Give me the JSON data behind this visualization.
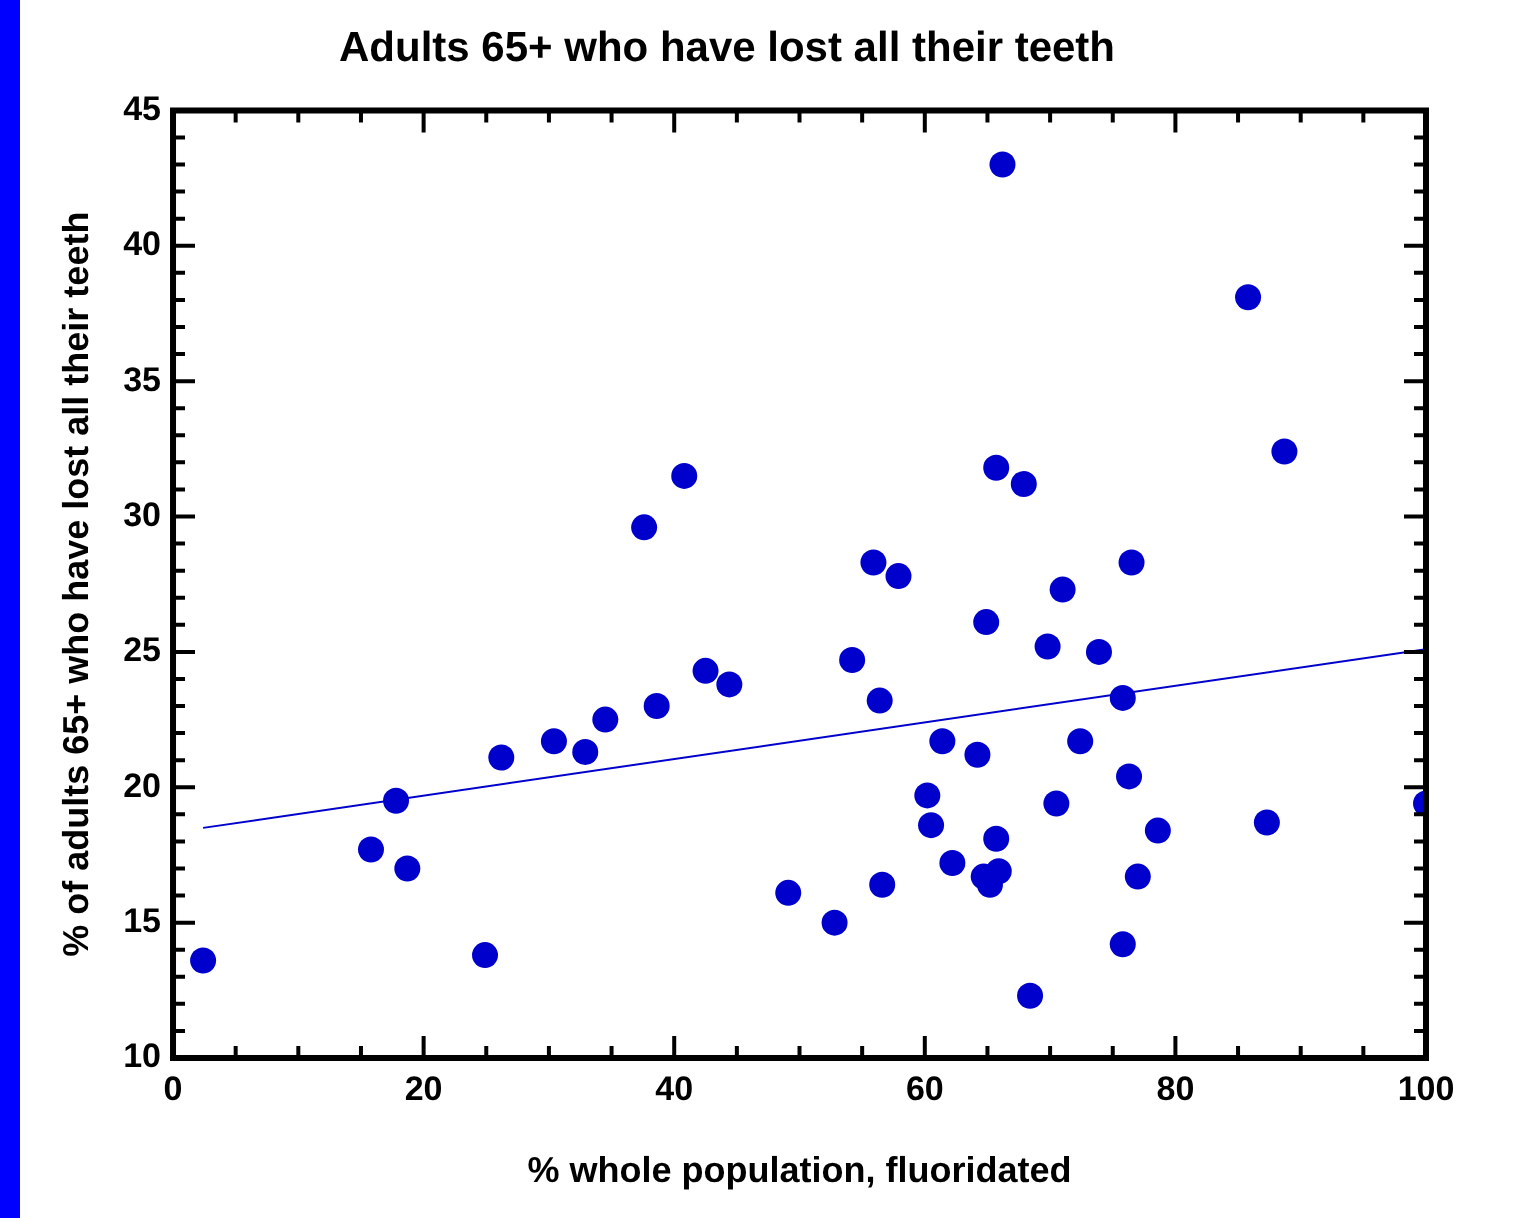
{
  "chart_data": {
    "type": "scatter",
    "title": "Adults 65+ who have lost all their teeth",
    "xlabel": "% whole population, fluoridated",
    "ylabel": "% of adults 65+ who have lost all their teeth",
    "xlim": [
      0,
      100
    ],
    "ylim": [
      10,
      45
    ],
    "xticks": [
      0,
      {
        "value": 5,
        "label": null
      },
      {
        "value": 10,
        "label": null
      },
      {
        "value": 15,
        "label": null
      },
      20,
      {
        "value": 25,
        "label": null
      },
      {
        "value": 30,
        "label": null
      },
      {
        "value": 35,
        "label": null
      },
      40,
      {
        "value": 45,
        "label": null
      },
      {
        "value": 50,
        "label": null
      },
      {
        "value": 55,
        "label": null
      },
      60,
      {
        "value": 65,
        "label": null
      },
      {
        "value": 70,
        "label": null
      },
      {
        "value": 75,
        "label": null
      },
      80,
      {
        "value": 85,
        "label": null
      },
      {
        "value": 90,
        "label": null
      },
      {
        "value": 95,
        "label": null
      },
      100
    ],
    "yticks": [
      10,
      {
        "value": 11,
        "label": null
      },
      {
        "value": 12,
        "label": null
      },
      {
        "value": 13,
        "label": null
      },
      {
        "value": 14,
        "label": null
      },
      15,
      {
        "value": 16,
        "label": null
      },
      {
        "value": 17,
        "label": null
      },
      {
        "value": 18,
        "label": null
      },
      {
        "value": 19,
        "label": null
      },
      20,
      {
        "value": 21,
        "label": null
      },
      {
        "value": 22,
        "label": null
      },
      {
        "value": 23,
        "label": null
      },
      {
        "value": 24,
        "label": null
      },
      25,
      {
        "value": 26,
        "label": null
      },
      {
        "value": 27,
        "label": null
      },
      {
        "value": 28,
        "label": null
      },
      {
        "value": 29,
        "label": null
      },
      30,
      {
        "value": 31,
        "label": null
      },
      {
        "value": 32,
        "label": null
      },
      {
        "value": 33,
        "label": null
      },
      {
        "value": 34,
        "label": null
      },
      35,
      {
        "value": 36,
        "label": null
      },
      {
        "value": 37,
        "label": null
      },
      {
        "value": 38,
        "label": null
      },
      {
        "value": 39,
        "label": null
      },
      40,
      {
        "value": 41,
        "label": null
      },
      {
        "value": 42,
        "label": null
      },
      {
        "value": 43,
        "label": null
      },
      {
        "value": 44,
        "label": null
      },
      45
    ],
    "series": [
      {
        "type": "scatter",
        "marker": "circle",
        "color": "#0000cc",
        "x": [
          2.4,
          15.8,
          17.8,
          18.7,
          24.9,
          26.2,
          30.4,
          32.9,
          34.5,
          37.6,
          38.6,
          40.8,
          42.5,
          44.4,
          49.1,
          52.8,
          54.2,
          55.9,
          56.4,
          56.6,
          57.9,
          60.2,
          60.5,
          61.4,
          62.2,
          64.2,
          64.9,
          64.7,
          65.9,
          65.2,
          65.7,
          65.7,
          66.2,
          67.9,
          68.4,
          69.8,
          70.5,
          71.0,
          72.4,
          73.9,
          75.8,
          75.8,
          76.3,
          76.5,
          77.0,
          78.6,
          85.8,
          87.3,
          88.7,
          100
        ],
        "values": [
          13.6,
          17.7,
          19.5,
          17.0,
          13.8,
          21.1,
          21.7,
          21.3,
          22.5,
          29.6,
          23.0,
          31.5,
          24.3,
          23.8,
          16.1,
          15.0,
          24.7,
          28.3,
          23.2,
          16.4,
          27.8,
          19.7,
          18.6,
          21.7,
          17.2,
          21.2,
          26.1,
          16.7,
          16.9,
          16.4,
          18.1,
          31.8,
          43.0,
          31.2,
          12.3,
          25.2,
          19.4,
          27.3,
          21.7,
          25.0,
          23.3,
          14.2,
          20.4,
          28.3,
          16.7,
          18.4,
          38.1,
          18.7,
          32.4,
          19.4
        ]
      },
      {
        "type": "line",
        "marker": "none",
        "color": "#0000cc",
        "x": [
          2.4,
          100
        ],
        "values": [
          18.5,
          25.1
        ]
      }
    ]
  }
}
